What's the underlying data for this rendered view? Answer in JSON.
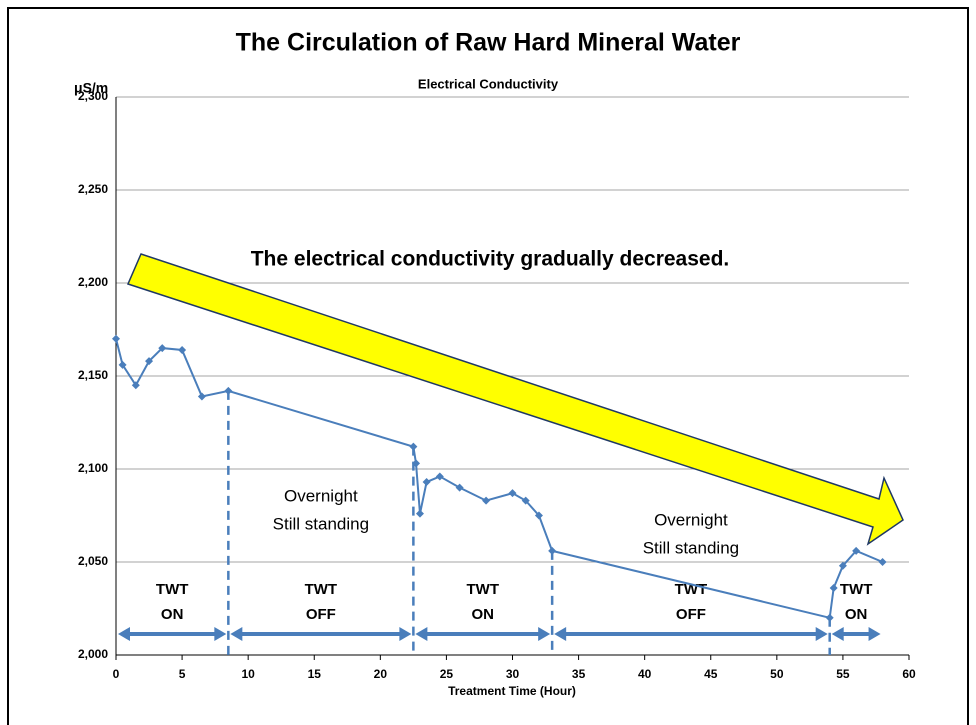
{
  "chart_data": {
    "type": "line",
    "title": "The Circulation of Raw Hard Mineral Water",
    "subtitle": "Electrical Conductivity",
    "y_unit": "μS/m",
    "x_label": "Treatment Time (Hour)",
    "annotation": "The electrical conductivity gradually decreased.",
    "series": [
      {
        "name": "Electrical Conductivity",
        "color": "#4a7ebb",
        "x": [
          0,
          0.5,
          1.5,
          2.5,
          3.5,
          5,
          6.5,
          8.5,
          22.5,
          22.7,
          23,
          23.5,
          24.5,
          26,
          28,
          30,
          31,
          32,
          33,
          54,
          54.3,
          55,
          56,
          58
        ],
        "values": [
          2170,
          2156,
          2145,
          2158,
          2165,
          2164,
          2139,
          2142,
          2112,
          2103,
          2076,
          2093,
          2096,
          2090,
          2083,
          2087,
          2083,
          2075,
          2056,
          2020,
          2036,
          2048,
          2056,
          2050
        ]
      }
    ],
    "dividers": [
      8.5,
      22.5,
      33,
      54
    ],
    "phases": [
      {
        "lines": [
          "TWT",
          "ON"
        ]
      },
      {
        "lines": [
          "TWT",
          "OFF"
        ],
        "note": [
          "Overnight",
          "Still standing"
        ]
      },
      {
        "lines": [
          "TWT",
          "ON"
        ]
      },
      {
        "lines": [
          "TWT",
          "OFF"
        ],
        "note": [
          "Overnight",
          "Still standing"
        ]
      },
      {
        "lines": [
          "TWT",
          "ON"
        ]
      }
    ],
    "xlim": [
      0,
      60
    ],
    "xticks": [
      0,
      5,
      10,
      15,
      20,
      25,
      30,
      35,
      40,
      45,
      50,
      55,
      60
    ],
    "ylim": [
      2000,
      2300
    ],
    "yticks": [
      {
        "value": 2000,
        "label": "2,000"
      },
      {
        "value": 2050,
        "label": "2,050"
      },
      {
        "value": 2100,
        "label": "2,100"
      },
      {
        "value": 2150,
        "label": "2,150"
      },
      {
        "value": 2200,
        "label": "2,200"
      },
      {
        "value": 2250,
        "label": "2,250"
      },
      {
        "value": 2300,
        "label": "2,300"
      }
    ],
    "grid": true
  }
}
